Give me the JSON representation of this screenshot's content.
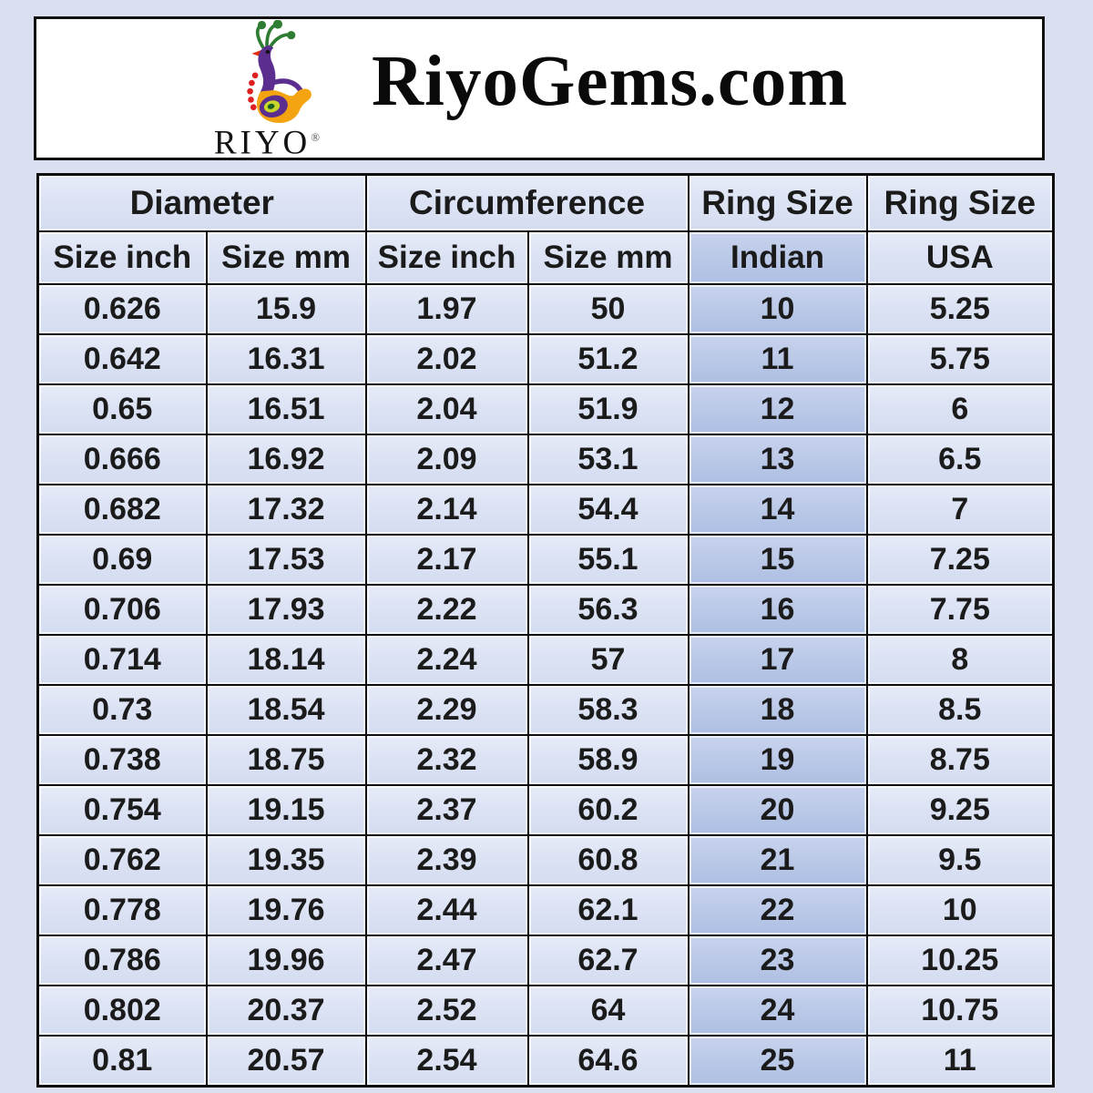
{
  "page": {
    "background_color": "#dbe0f0",
    "highlight_color": "#bccae8",
    "cell_color": "#dce3f4",
    "border_color": "#0e0e0e"
  },
  "header": {
    "brand_title": "RiyoGems.com",
    "logo": {
      "icon": "peacock-icon",
      "wordmark": "RIYO",
      "registered_mark": "®"
    }
  },
  "table": {
    "column_groups": [
      {
        "label": "Diameter",
        "span": 2
      },
      {
        "label": "Circumference",
        "span": 2
      },
      {
        "label": "Ring Size",
        "span": 1
      },
      {
        "label": "Ring Size",
        "span": 1
      }
    ],
    "sub_headers": [
      "Size inch",
      "Size mm",
      "Size inch",
      "Size mm",
      "Indian",
      "USA"
    ],
    "highlight_column_index": 4,
    "rows": [
      [
        "0.626",
        "15.9",
        "1.97",
        "50",
        "10",
        "5.25"
      ],
      [
        "0.642",
        "16.31",
        "2.02",
        "51.2",
        "11",
        "5.75"
      ],
      [
        "0.65",
        "16.51",
        "2.04",
        "51.9",
        "12",
        "6"
      ],
      [
        "0.666",
        "16.92",
        "2.09",
        "53.1",
        "13",
        "6.5"
      ],
      [
        "0.682",
        "17.32",
        "2.14",
        "54.4",
        "14",
        "7"
      ],
      [
        "0.69",
        "17.53",
        "2.17",
        "55.1",
        "15",
        "7.25"
      ],
      [
        "0.706",
        "17.93",
        "2.22",
        "56.3",
        "16",
        "7.75"
      ],
      [
        "0.714",
        "18.14",
        "2.24",
        "57",
        "17",
        "8"
      ],
      [
        "0.73",
        "18.54",
        "2.29",
        "58.3",
        "18",
        "8.5"
      ],
      [
        "0.738",
        "18.75",
        "2.32",
        "58.9",
        "19",
        "8.75"
      ],
      [
        "0.754",
        "19.15",
        "2.37",
        "60.2",
        "20",
        "9.25"
      ],
      [
        "0.762",
        "19.35",
        "2.39",
        "60.8",
        "21",
        "9.5"
      ],
      [
        "0.778",
        "19.76",
        "2.44",
        "62.1",
        "22",
        "10"
      ],
      [
        "0.786",
        "19.96",
        "2.47",
        "62.7",
        "23",
        "10.25"
      ],
      [
        "0.802",
        "20.37",
        "2.52",
        "64",
        "24",
        "10.75"
      ],
      [
        "0.81",
        "20.57",
        "2.54",
        "64.6",
        "25",
        "11"
      ]
    ]
  },
  "chart_data": {
    "type": "table",
    "title": "RiyoGems.com ring size conversion chart",
    "columns": [
      "Diameter Size inch",
      "Diameter Size mm",
      "Circumference Size inch",
      "Circumference Size mm",
      "Ring Size Indian",
      "Ring Size USA"
    ],
    "rows": [
      [
        0.626,
        15.9,
        1.97,
        50,
        10,
        5.25
      ],
      [
        0.642,
        16.31,
        2.02,
        51.2,
        11,
        5.75
      ],
      [
        0.65,
        16.51,
        2.04,
        51.9,
        12,
        6
      ],
      [
        0.666,
        16.92,
        2.09,
        53.1,
        13,
        6.5
      ],
      [
        0.682,
        17.32,
        2.14,
        54.4,
        14,
        7
      ],
      [
        0.69,
        17.53,
        2.17,
        55.1,
        15,
        7.25
      ],
      [
        0.706,
        17.93,
        2.22,
        56.3,
        16,
        7.75
      ],
      [
        0.714,
        18.14,
        2.24,
        57,
        17,
        8
      ],
      [
        0.73,
        18.54,
        2.29,
        58.3,
        18,
        8.5
      ],
      [
        0.738,
        18.75,
        2.32,
        58.9,
        19,
        8.75
      ],
      [
        0.754,
        19.15,
        2.37,
        60.2,
        20,
        9.25
      ],
      [
        0.762,
        19.35,
        2.39,
        60.8,
        21,
        9.5
      ],
      [
        0.778,
        19.76,
        2.44,
        62.1,
        22,
        10
      ],
      [
        0.786,
        19.96,
        2.47,
        62.7,
        23,
        10.25
      ],
      [
        0.802,
        20.37,
        2.52,
        64,
        24,
        10.75
      ],
      [
        0.81,
        20.57,
        2.54,
        64.6,
        25,
        11
      ]
    ]
  }
}
